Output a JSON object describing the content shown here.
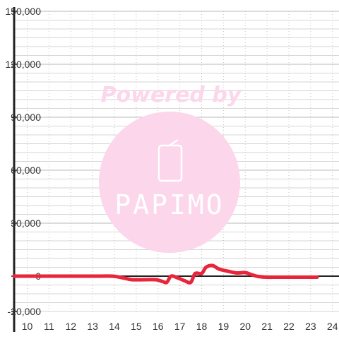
{
  "chart_data": {
    "type": "line",
    "title": "",
    "xlabel": "",
    "ylabel": "",
    "xlim": [
      9.4,
      24.3
    ],
    "ylim": [
      -20000,
      150000
    ],
    "x_ticks": [
      10,
      11,
      12,
      13,
      14,
      15,
      16,
      17,
      18,
      19,
      20,
      21,
      22,
      23,
      24
    ],
    "y_ticks": [
      -20000,
      0,
      30000,
      60000,
      90000,
      120000,
      150000
    ],
    "x_tick_labels": [
      "10",
      "11",
      "12",
      "13",
      "14",
      "15",
      "16",
      "17",
      "18",
      "19",
      "20",
      "21",
      "22",
      "23",
      "24"
    ],
    "y_tick_labels": [
      "-20,000",
      "0",
      "30,000",
      "60,000",
      "90,000",
      "120,000",
      "150,000"
    ],
    "grid": true,
    "legend": "none",
    "series": [
      {
        "color": "#e8253a",
        "x": [
          9.4,
          13.0,
          13.9,
          14.4,
          14.8,
          15.4,
          15.9,
          16.2,
          16.4,
          16.6,
          16.9,
          17.2,
          17.5,
          17.7,
          18.0,
          18.2,
          18.5,
          18.8,
          19.2,
          19.6,
          20.0,
          20.3,
          20.6,
          21.0,
          21.5,
          22.3,
          23.3
        ],
        "y": [
          0,
          0,
          0,
          -1000,
          -2000,
          -2000,
          -2000,
          -3000,
          -3500,
          0,
          -1000,
          -2500,
          -3500,
          1500,
          1500,
          5000,
          6000,
          4000,
          2800,
          1800,
          2000,
          800,
          -200,
          -600,
          -600,
          -600,
          -600
        ]
      }
    ]
  },
  "watermark": {
    "powered_text": "Powered by",
    "brand": "PAPIMO",
    "color": "#fcd6ea"
  }
}
